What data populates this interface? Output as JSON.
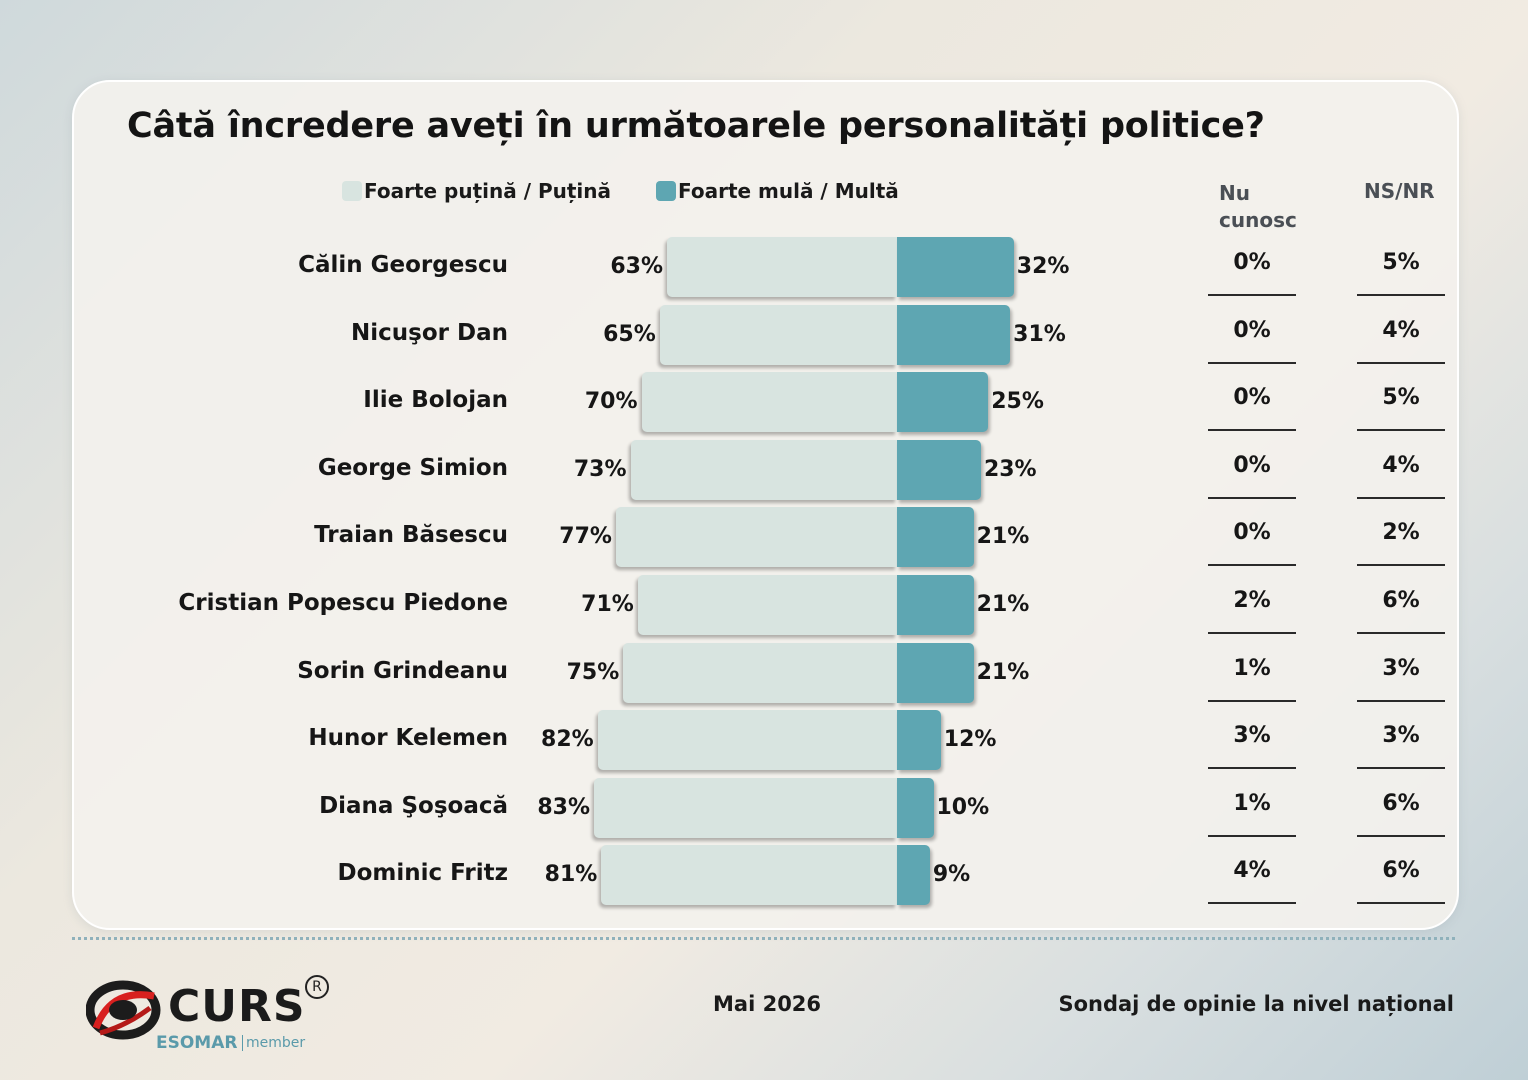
{
  "title": "Câtă încredere aveți în următoarele personalități politice?",
  "legend": {
    "light_label": "Foarte puțină / Puțină",
    "dark_label": "Foarte mulă / Multă"
  },
  "columns": {
    "nu_cunosc": "Nu cunosc",
    "nsnr": "NS/NR"
  },
  "colors": {
    "light": "#d8e4e0",
    "dark": "#5ea6b2"
  },
  "chart_data": {
    "type": "bar",
    "title": "Câtă încredere aveți în următoarele personalități politice?",
    "categories": [
      "Călin Georgescu",
      "Nicuşor Dan",
      "Ilie Bolojan",
      "George Simion",
      "Traian Băsescu",
      "Cristian Popescu Piedone",
      "Sorin Grindeanu",
      "Hunor Kelemen",
      "Diana Şoşoacă",
      "Dominic Fritz"
    ],
    "series": [
      {
        "name": "Foarte puțină / Puțină",
        "values": [
          63,
          65,
          70,
          73,
          77,
          71,
          75,
          82,
          83,
          81
        ]
      },
      {
        "name": "Foarte mulă / Multă",
        "values": [
          32,
          31,
          25,
          23,
          21,
          21,
          21,
          12,
          10,
          9
        ]
      },
      {
        "name": "Nu cunosc",
        "values": [
          0,
          0,
          0,
          0,
          0,
          2,
          1,
          3,
          1,
          4
        ]
      },
      {
        "name": "NS/NR",
        "values": [
          5,
          4,
          5,
          4,
          2,
          6,
          3,
          3,
          6,
          6
        ]
      }
    ],
    "unit": "%",
    "legend_position": "top"
  },
  "footer": {
    "date": "Mai 2026",
    "source": "Sondaj de opinie la nivel național"
  },
  "logo": {
    "word": "CURS",
    "reg": "R",
    "esomar": "ESOMAR",
    "member": "member"
  }
}
